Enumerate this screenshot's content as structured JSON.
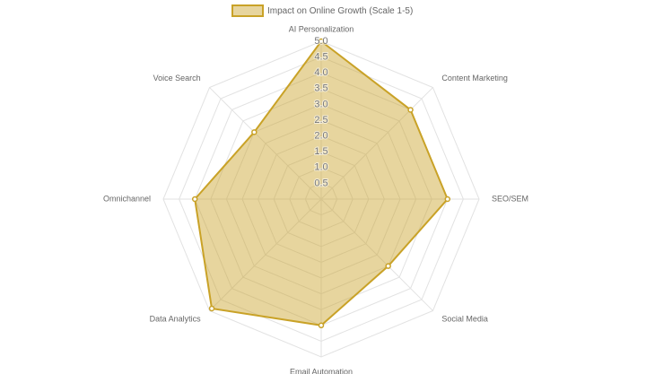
{
  "chart_data": {
    "type": "radar",
    "categories": [
      "AI Personalization",
      "Content Marketing",
      "SEO/SEM",
      "Social Media",
      "Email Automation",
      "Data Analytics",
      "Omnichannel",
      "Voice Search"
    ],
    "series": [
      {
        "name": "Impact on Online Growth (Scale 1-5)",
        "color": "#c9a227",
        "values": [
          5.0,
          4.0,
          4.0,
          3.0,
          4.0,
          4.9,
          4.0,
          3.0
        ]
      }
    ],
    "rlim": [
      0,
      5
    ],
    "rticks": [
      0.5,
      {
        "value": 1,
        "label": "1.0"
      },
      1.5,
      {
        "value": 2,
        "label": "2.0"
      },
      2.5,
      {
        "value": 3,
        "label": "3.0"
      },
      3.5,
      {
        "value": 4,
        "label": "4.0"
      },
      4.5,
      {
        "value": 5,
        "label": "5.0"
      }
    ],
    "grid": true,
    "legend": "top"
  }
}
